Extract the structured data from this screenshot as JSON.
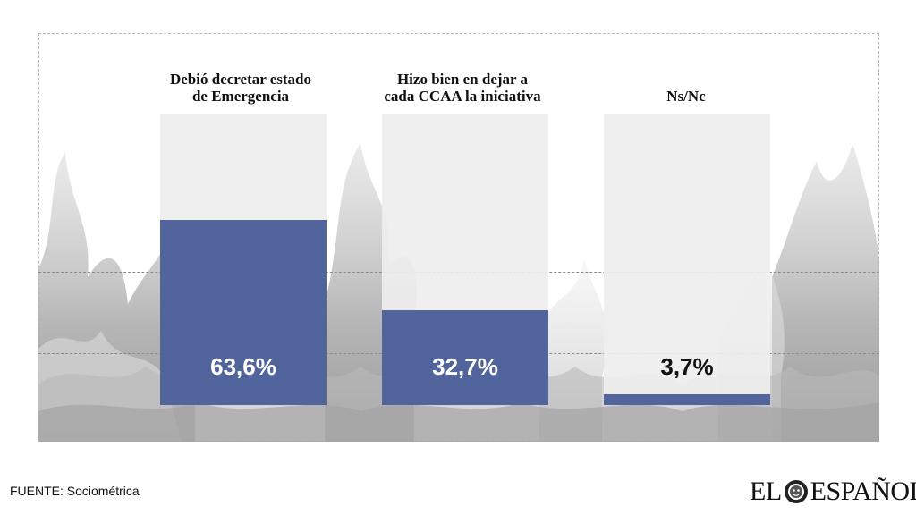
{
  "chart_data": {
    "type": "bar",
    "categories": [
      "Debió decretar estado de Emergencia",
      "Hizo bien en dejar a cada CCAA la iniciativa",
      "Ns/Nc"
    ],
    "category_lines": [
      [
        "Debió decretar estado",
        "de Emergencia"
      ],
      [
        "Hizo bien en dejar a",
        "cada CCAA la iniciativa"
      ],
      [
        "Ns/Nc"
      ]
    ],
    "values": [
      63.6,
      32.7,
      3.7
    ],
    "value_labels": [
      "63,6%",
      "32,7%",
      "3,7%"
    ],
    "ylim": [
      0,
      100
    ],
    "unit": "%",
    "bar_color": "#51649B",
    "bar_background": "#EEEEEE",
    "title": "",
    "xlabel": "",
    "ylabel": ""
  },
  "footer": {
    "source": "FUENTE: Sociométrica",
    "logo_left": "EL",
    "logo_right": "ESPAÑOL"
  }
}
